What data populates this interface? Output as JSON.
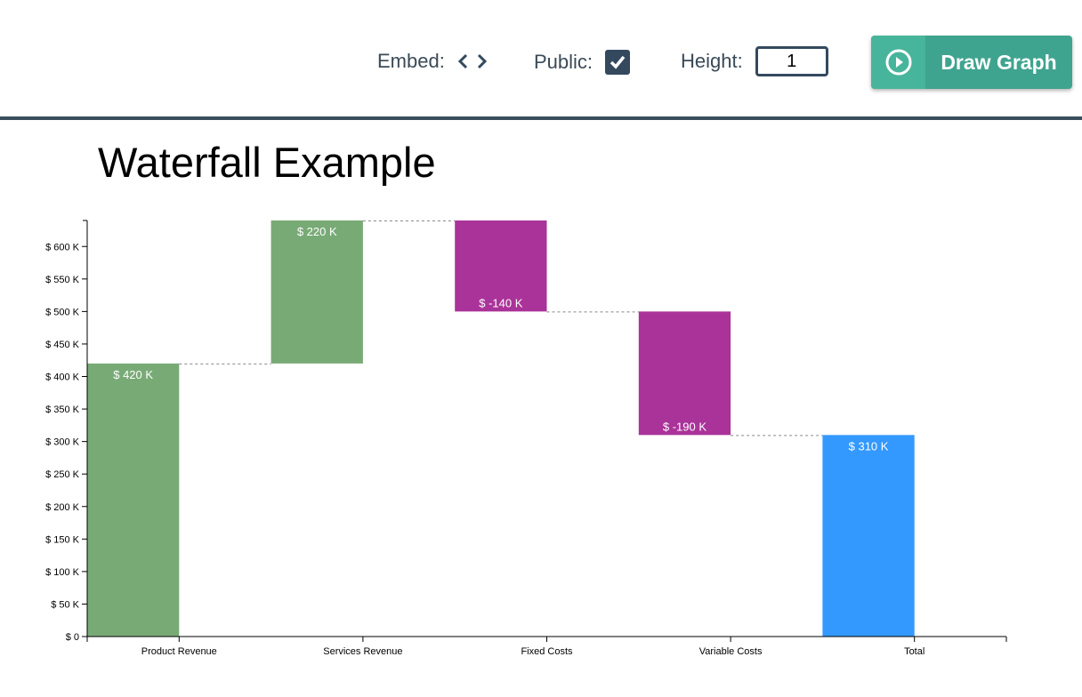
{
  "toolbar": {
    "embed_label": "Embed:",
    "public_label": "Public:",
    "public_checked": true,
    "height_label": "Height:",
    "height_value": "1",
    "draw_button": "Draw Graph"
  },
  "chart_data": {
    "type": "waterfall",
    "title": "Waterfall Example",
    "categories": [
      "Product Revenue",
      "Services Revenue",
      "Fixed Costs",
      "Variable Costs",
      "Total"
    ],
    "values": [
      420,
      220,
      -140,
      -190,
      310
    ],
    "is_total": [
      false,
      false,
      false,
      false,
      true
    ],
    "value_labels": [
      "$ 420 K",
      "$ 220 K",
      "$ -140 K",
      "$ -190 K",
      "$ 310 K"
    ],
    "yticks": [
      "$ 0",
      "$ 50 K",
      "$ 100 K",
      "$ 150 K",
      "$ 200 K",
      "$ 250 K",
      "$ 300 K",
      "$ 350 K",
      "$ 400 K",
      "$ 450 K",
      "$ 500 K",
      "$ 550 K",
      "$ 600 K"
    ],
    "ytick_values": [
      0,
      50,
      100,
      150,
      200,
      250,
      300,
      350,
      400,
      450,
      500,
      550,
      600
    ],
    "ylim": [
      0,
      640
    ],
    "units": "K $",
    "colors": {
      "increase": "#78aa76",
      "decrease": "#aa3399",
      "total": "#3399ff"
    }
  }
}
